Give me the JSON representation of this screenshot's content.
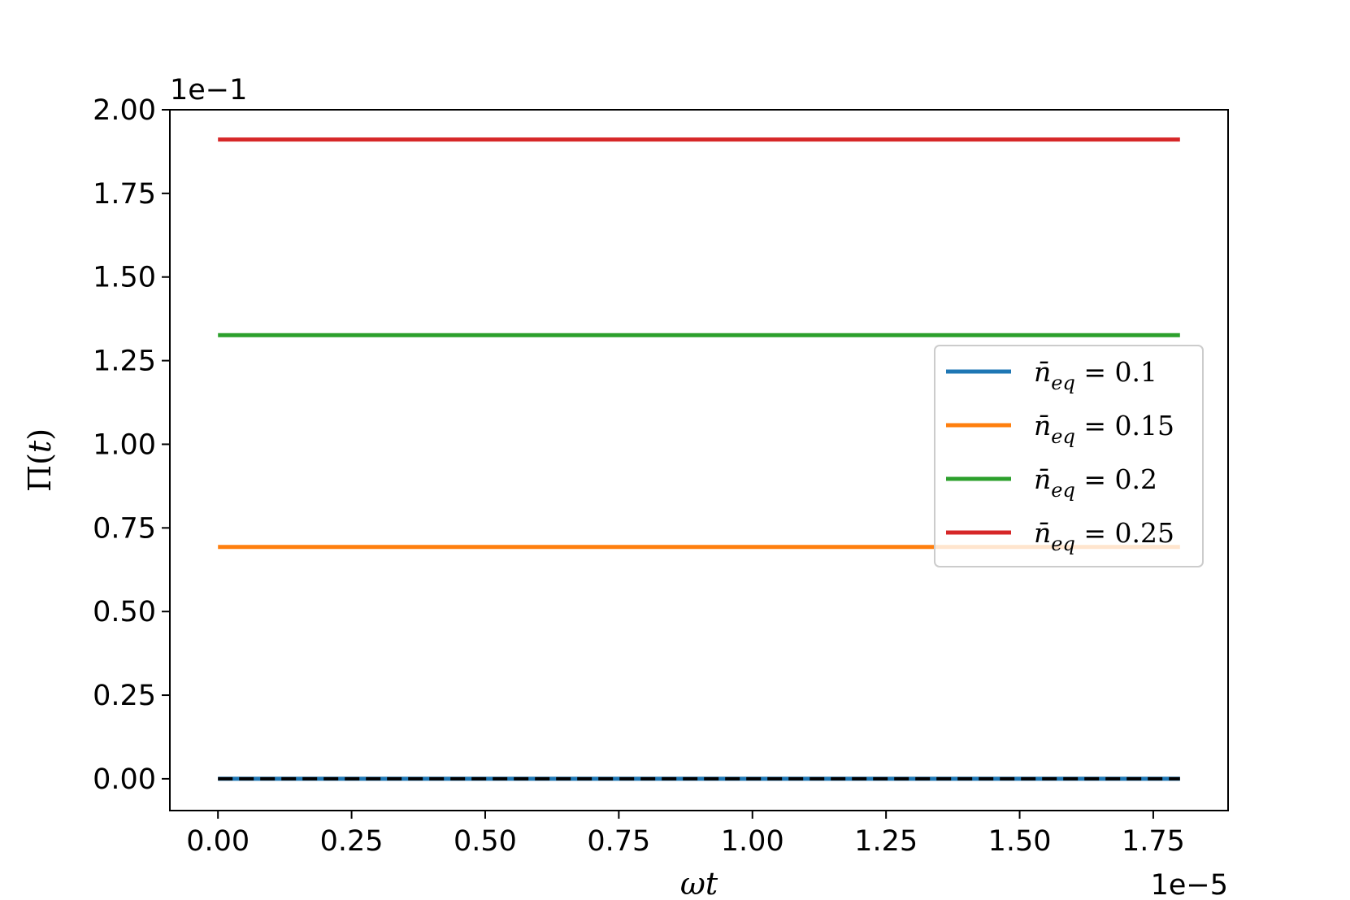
{
  "chart_data": {
    "type": "line",
    "xlabel_main": "ω",
    "xlabel_var": "t",
    "ylabel_main": "Π(",
    "ylabel_var": "t",
    "ylabel_close": ")",
    "x_offset_text": "1e−5",
    "y_offset_text": "1e−1",
    "xlim": [
      -0.09,
      1.89
    ],
    "ylim": [
      -0.095,
      2.0
    ],
    "x_ticks": [
      0.0,
      0.25,
      0.5,
      0.75,
      1.0,
      1.25,
      1.5,
      1.75
    ],
    "x_tick_labels": [
      "0.00",
      "0.25",
      "0.50",
      "0.75",
      "1.00",
      "1.25",
      "1.50",
      "1.75"
    ],
    "y_ticks": [
      0.0,
      0.25,
      0.5,
      0.75,
      1.0,
      1.25,
      1.5,
      1.75,
      2.0
    ],
    "y_tick_labels": [
      "0.00",
      "0.25",
      "0.50",
      "0.75",
      "1.00",
      "1.25",
      "1.50",
      "1.75",
      "2.00"
    ],
    "grid": false,
    "legend_position": "center-right",
    "series": [
      {
        "name": "n̄eq = 0.1",
        "legend_value": "0.1",
        "color": "#1f77b4",
        "x": [
          0.0,
          1.8
        ],
        "y": [
          0.0,
          0.0
        ]
      },
      {
        "name": "n̄eq = 0.15",
        "legend_value": "0.15",
        "color": "#ff7f0e",
        "x": [
          0.0,
          1.8
        ],
        "y": [
          0.693,
          0.693
        ]
      },
      {
        "name": "n̄eq = 0.2",
        "legend_value": "0.2",
        "color": "#2ca02c",
        "x": [
          0.0,
          1.8
        ],
        "y": [
          1.326,
          1.326
        ]
      },
      {
        "name": "n̄eq = 0.25",
        "legend_value": "0.25",
        "color": "#d62728",
        "x": [
          0.0,
          1.8
        ],
        "y": [
          1.911,
          1.911
        ]
      }
    ],
    "reference_line": {
      "style": "dashed",
      "color": "#000000",
      "x": [
        0.0,
        1.8
      ],
      "y": [
        0.0,
        0.0
      ]
    }
  }
}
